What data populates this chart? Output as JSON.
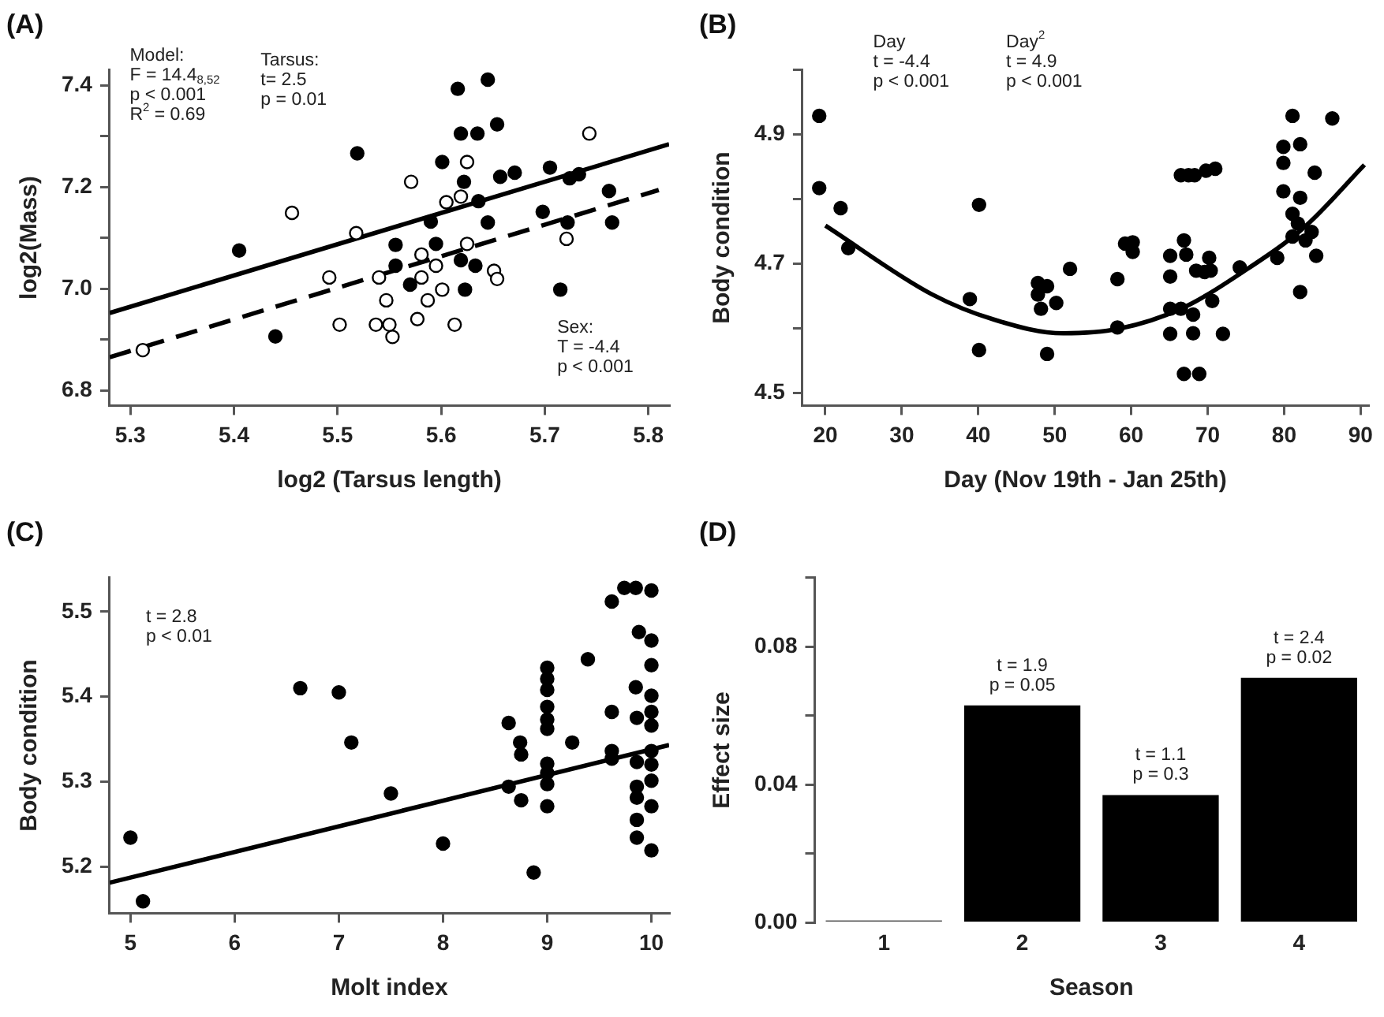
{
  "chart_data": [
    {
      "type": "scatter",
      "title": "(A)",
      "xlabel": "log2 (Tarsus length)",
      "ylabel": "log2(Mass)",
      "xlim": [
        5.28,
        5.82
      ],
      "xticks": [
        5.3,
        5.4,
        5.5,
        5.6,
        5.7,
        5.8
      ],
      "ylim": [
        6.77,
        7.43
      ],
      "yticks": [
        6.8,
        {
          "value": 6.9,
          "label": null
        },
        {
          "value": 7,
          "label": "7.0"
        },
        {
          "value": 7.1,
          "label": null
        },
        7.2,
        {
          "value": 7.3,
          "label": null
        },
        7.4
      ],
      "grid": false,
      "legend": false,
      "marker": "circle",
      "annotations": [
        "Model:\nF = 14.4$_{8,52}$\np < 0.001\nR$^{2}$ = 0.69",
        "Tarsus:\nt= 2.5\np = 0.01",
        "Sex:\nT = -4.4\np < 0.001"
      ],
      "series": [
        {
          "type": "scatter",
          "color": "#000000",
          "x": [
            5.405,
            5.44,
            5.519,
            5.556,
            5.556,
            5.57,
            5.59,
            5.595,
            5.601,
            5.616,
            5.619,
            5.635,
            5.622,
            5.619,
            5.633,
            5.623,
            5.636,
            5.645,
            5.645,
            5.654,
            5.657,
            5.671,
            5.698,
            5.705,
            5.715,
            5.724,
            5.733,
            5.762,
            5.765,
            5.722
          ],
          "values": [
            7.075,
            6.906,
            7.266,
            7.086,
            7.045,
            7.008,
            7.132,
            7.088,
            7.249,
            7.393,
            7.305,
            7.305,
            7.21,
            7.056,
            7.045,
            6.998,
            7.172,
            7.411,
            7.13,
            7.323,
            7.22,
            7.228,
            7.151,
            7.238,
            6.998,
            7.217,
            7.225,
            7.192,
            7.13,
            7.13
          ]
        },
        {
          "type": "scatter",
          "color": "#ffffff",
          "x": [
            5.312,
            5.456,
            5.492,
            5.502,
            5.518,
            5.54,
            5.537,
            5.547,
            5.55,
            5.553,
            5.571,
            5.577,
            5.581,
            5.581,
            5.587,
            5.595,
            5.601,
            5.605,
            5.613,
            5.619,
            5.625,
            5.625,
            5.651,
            5.654,
            5.721,
            5.743
          ],
          "values": [
            6.879,
            7.149,
            7.022,
            6.929,
            7.109,
            7.022,
            6.929,
            6.977,
            6.929,
            6.905,
            7.21,
            6.94,
            7.067,
            7.022,
            6.977,
            7.045,
            6.998,
            7.17,
            6.929,
            7.181,
            7.249,
            7.088,
            7.035,
            7.019,
            7.098,
            7.305
          ]
        },
        {
          "type": "line",
          "marker": "none",
          "color": "#000000",
          "line_style": "solid",
          "x": [
            5.28,
            5.82
          ],
          "values": [
            6.952,
            7.284
          ]
        },
        {
          "type": "line",
          "marker": "none",
          "color": "#000000",
          "line_style": "dashed",
          "x": [
            5.28,
            5.81
          ],
          "values": [
            6.865,
            7.194
          ]
        }
      ]
    },
    {
      "type": "scatter",
      "title": "(B)",
      "xlabel": "Day (Nov 19th - Jan 25th)",
      "ylabel": "Body condition",
      "xlim": [
        17,
        91
      ],
      "xticks": [
        20,
        30,
        40,
        50,
        60,
        70,
        80,
        90
      ],
      "ylim": [
        4.48,
        5.0
      ],
      "yticks": [
        4.5,
        {
          "value": 4.6,
          "label": null
        },
        4.7,
        {
          "value": 4.8,
          "label": null
        },
        4.9,
        {
          "value": 5,
          "label": null
        }
      ],
      "grid": false,
      "legend": false,
      "marker": "circle",
      "annotations": [
        "Day\nt = -4.4\np < 0.001",
        "Day$^{2}$\nt = 4.9\np < 0.001"
      ],
      "series": [
        {
          "type": "scatter",
          "color": "#000000",
          "x": [
            19.2,
            19.2,
            22.0,
            23.0,
            38.9,
            40.1,
            40.1,
            47.8,
            49.0,
            47.8,
            48.2,
            50.2,
            49.0,
            52.0,
            58.2,
            58.2,
            59.2,
            60.2,
            60.2,
            65.1,
            65.1,
            65.1,
            65.1,
            66.5,
            67.5,
            68.3,
            69.8,
            71.0,
            66.9,
            67.2,
            66.5,
            68.1,
            68.1,
            66.9,
            68.9,
            68.5,
            69.6,
            70.2,
            70.4,
            70.6,
            72.0,
            74.2,
            79.1,
            79.9,
            79.9,
            79.9,
            81.1,
            82.1,
            82.1,
            81.1,
            81.8,
            81.1,
            82.8,
            83.6,
            84.0,
            84.2,
            82.1,
            86.3
          ],
          "values": [
            4.929,
            4.817,
            4.786,
            4.724,
            4.645,
            4.791,
            4.566,
            4.67,
            4.665,
            4.652,
            4.63,
            4.639,
            4.56,
            4.692,
            4.676,
            4.601,
            4.731,
            4.733,
            4.718,
            4.712,
            4.68,
            4.63,
            4.591,
            4.837,
            4.837,
            4.837,
            4.844,
            4.847,
            4.736,
            4.714,
            4.63,
            4.621,
            4.592,
            4.529,
            4.529,
            4.689,
            4.687,
            4.709,
            4.689,
            4.642,
            4.591,
            4.694,
            4.709,
            4.881,
            4.856,
            4.812,
            4.929,
            4.885,
            4.802,
            4.777,
            4.762,
            4.742,
            4.736,
            4.749,
            4.841,
            4.712,
            4.656,
            4.925
          ]
        },
        {
          "type": "line",
          "marker": "none",
          "color": "#000000",
          "line_style": "solid",
          "x": [
            20,
            34,
            42.1,
            51.1,
            58.4,
            66.5,
            74.6,
            82.8,
            90.5
          ],
          "values": [
            4.759,
            4.652,
            4.613,
            4.592,
            4.599,
            4.63,
            4.687,
            4.758,
            4.853
          ]
        }
      ]
    },
    {
      "type": "scatter",
      "title": "(C)",
      "xlabel": "Molt index",
      "ylabel": "Body condition",
      "xlim": [
        4.8,
        10.17
      ],
      "xticks": [
        5,
        6,
        7,
        8,
        9,
        10
      ],
      "ylim": [
        5.145,
        5.54
      ],
      "yticks": [
        5.2,
        5.3,
        5.4,
        5.5
      ],
      "grid": false,
      "legend": false,
      "marker": "circle",
      "annotations": [
        "t = 2.8\np < 0.01"
      ],
      "series": [
        {
          "type": "scatter",
          "color": "#000000",
          "x": [
            5.0,
            5.12,
            6.63,
            7.0,
            7.12,
            7.5,
            8.0,
            8.63,
            8.63,
            8.74,
            8.75,
            8.75,
            8.87,
            9.0,
            9.0,
            9.0,
            9.0,
            9.0,
            9.0,
            9.0,
            9.0,
            9.0,
            9.0,
            9.24,
            9.39,
            9.62,
            9.62,
            9.62,
            9.62,
            9.74,
            9.85,
            9.88,
            9.85,
            9.86,
            9.86,
            9.86,
            9.86,
            9.86,
            9.86,
            10.0,
            10.0,
            10.0,
            10.0,
            10.0,
            10.0,
            10.0,
            10.0,
            10.0,
            10.0,
            10.0
          ],
          "values": [
            5.234,
            5.159,
            5.41,
            5.405,
            5.346,
            5.286,
            5.227,
            5.369,
            5.294,
            5.346,
            5.332,
            5.278,
            5.193,
            5.434,
            5.421,
            5.408,
            5.388,
            5.373,
            5.362,
            5.321,
            5.31,
            5.297,
            5.271,
            5.346,
            5.444,
            5.512,
            5.382,
            5.336,
            5.327,
            5.528,
            5.528,
            5.476,
            5.411,
            5.375,
            5.323,
            5.294,
            5.281,
            5.255,
            5.234,
            5.525,
            5.466,
            5.437,
            5.401,
            5.382,
            5.366,
            5.336,
            5.32,
            5.301,
            5.271,
            5.219
          ]
        },
        {
          "type": "line",
          "marker": "none",
          "color": "#000000",
          "line_style": "solid",
          "x": [
            4.8,
            10.17
          ],
          "values": [
            5.181,
            5.343
          ]
        }
      ]
    },
    {
      "type": "bar",
      "title": "(D)",
      "xlabel": "Season",
      "ylabel": "Effect size",
      "categories": [
        "1",
        "2",
        "3",
        "4"
      ],
      "values": [
        0,
        0.063,
        0.037,
        0.071
      ],
      "colors": [
        "#555555",
        "#000000",
        "#000000",
        "#000000"
      ],
      "ylim": [
        0,
        0.1
      ],
      "yticks": [
        {
          "value": 0,
          "label": "0.00"
        },
        {
          "value": 0.02,
          "label": null
        },
        {
          "value": 0.04,
          "label": "0.04"
        },
        {
          "value": 0.06,
          "label": null
        },
        {
          "value": 0.08,
          "label": "0.08"
        },
        {
          "value": 0.1,
          "label": null
        }
      ],
      "grid": false,
      "legend": false,
      "annotations": [
        {
          "text": "t = 1.9\np = 0.05",
          "x": "2",
          "y": 0.063
        },
        {
          "text": "t = 1.1\np = 0.3",
          "x": "3",
          "y": 0.037
        },
        {
          "text": "t = 2.4\np = 0.02",
          "x": "4",
          "y": 0.071
        }
      ]
    }
  ]
}
